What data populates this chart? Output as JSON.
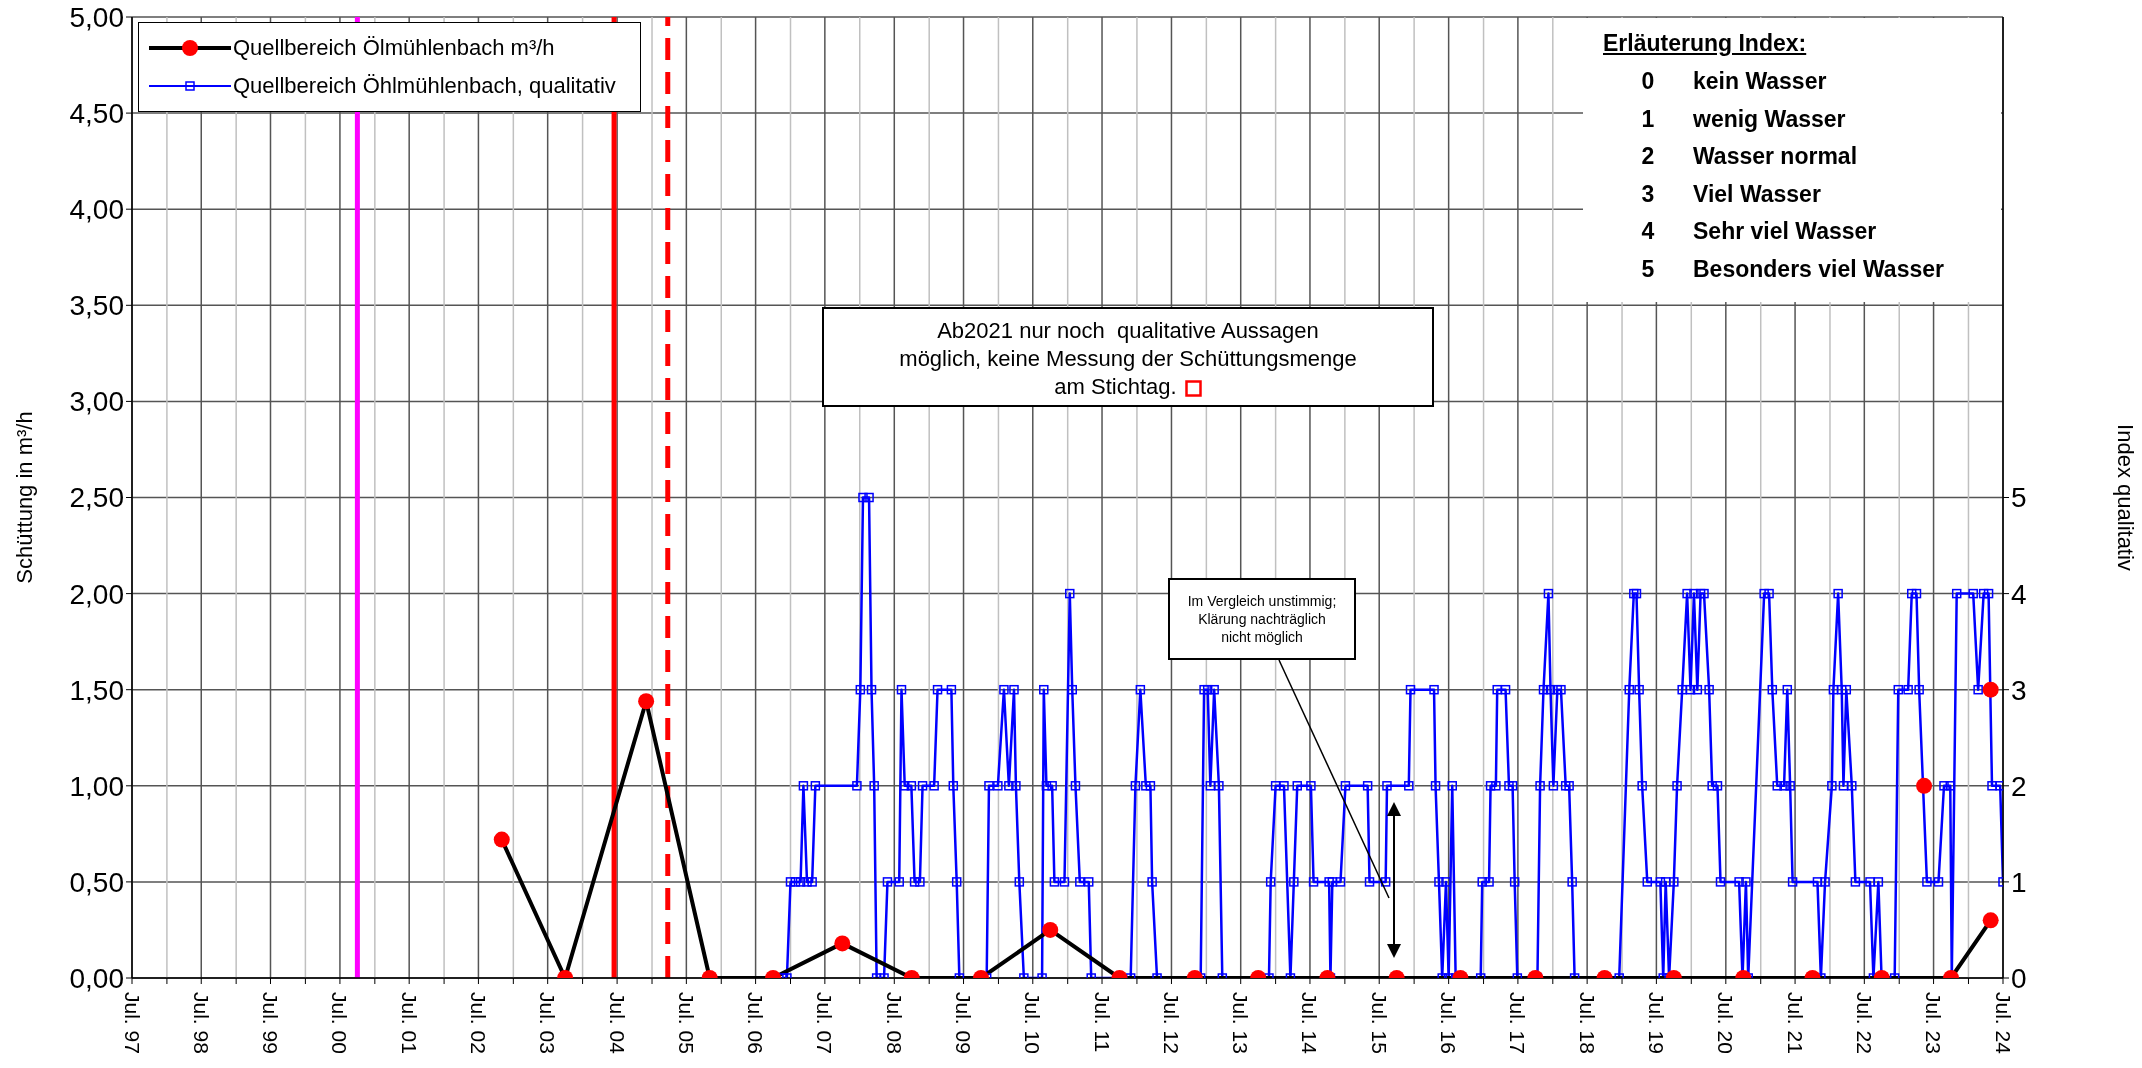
{
  "chart_data": {
    "type": "line",
    "ylabel": "Schüttung in m³/h",
    "y2label": "Index qualitativ",
    "xlim": [
      "1997-07",
      "2024-07"
    ],
    "xticks": [
      {
        "value": "1997-07",
        "label": "Jul. 97"
      },
      {
        "value": "1998-01",
        "label": null
      },
      {
        "value": "1998-07",
        "label": "Jul. 98"
      },
      {
        "value": "1999-01",
        "label": null
      },
      {
        "value": "1999-07",
        "label": "Jul. 99"
      },
      {
        "value": "2000-01",
        "label": null
      },
      {
        "value": "2000-07",
        "label": "Jul. 00"
      },
      {
        "value": "2001-01",
        "label": null
      },
      {
        "value": "2001-07",
        "label": "Jul. 01"
      },
      {
        "value": "2002-01",
        "label": null
      },
      {
        "value": "2002-07",
        "label": "Jul. 02"
      },
      {
        "value": "2003-01",
        "label": null
      },
      {
        "value": "2003-07",
        "label": "Jul. 03"
      },
      {
        "value": "2004-01",
        "label": null
      },
      {
        "value": "2004-07",
        "label": "Jul. 04"
      },
      {
        "value": "2005-01",
        "label": null
      },
      {
        "value": "2005-07",
        "label": "Jul. 05"
      },
      {
        "value": "2006-01",
        "label": null
      },
      {
        "value": "2006-07",
        "label": "Jul. 06"
      },
      {
        "value": "2007-01",
        "label": null
      },
      {
        "value": "2007-07",
        "label": "Jul. 07"
      },
      {
        "value": "2008-01",
        "label": null
      },
      {
        "value": "2008-07",
        "label": "Jul. 08"
      },
      {
        "value": "2009-01",
        "label": null
      },
      {
        "value": "2009-07",
        "label": "Jul. 09"
      },
      {
        "value": "2010-01",
        "label": null
      },
      {
        "value": "2010-07",
        "label": "Jul. 10"
      },
      {
        "value": "2011-01",
        "label": null
      },
      {
        "value": "2011-07",
        "label": "Jul. 11"
      },
      {
        "value": "2012-01",
        "label": null
      },
      {
        "value": "2012-07",
        "label": "Jul. 12"
      },
      {
        "value": "2013-01",
        "label": null
      },
      {
        "value": "2013-07",
        "label": "Jul. 13"
      },
      {
        "value": "2014-01",
        "label": null
      },
      {
        "value": "2014-07",
        "label": "Jul. 14"
      },
      {
        "value": "2015-01",
        "label": null
      },
      {
        "value": "2015-07",
        "label": "Jul. 15"
      },
      {
        "value": "2016-01",
        "label": null
      },
      {
        "value": "2016-07",
        "label": "Jul. 16"
      },
      {
        "value": "2017-01",
        "label": null
      },
      {
        "value": "2017-07",
        "label": "Jul. 17"
      },
      {
        "value": "2018-01",
        "label": null
      },
      {
        "value": "2018-07",
        "label": "Jul. 18"
      },
      {
        "value": "2019-01",
        "label": null
      },
      {
        "value": "2019-07",
        "label": "Jul. 19"
      },
      {
        "value": "2020-01",
        "label": null
      },
      {
        "value": "2020-07",
        "label": "Jul. 20"
      },
      {
        "value": "2021-01",
        "label": null
      },
      {
        "value": "2021-07",
        "label": "Jul. 21"
      },
      {
        "value": "2022-01",
        "label": null
      },
      {
        "value": "2022-07",
        "label": "Jul. 22"
      },
      {
        "value": "2023-01",
        "label": null
      },
      {
        "value": "2023-07",
        "label": "Jul. 23"
      },
      {
        "value": "2024-01",
        "label": null
      },
      {
        "value": "2024-07",
        "label": "Jul. 24"
      }
    ],
    "ylim": [
      0,
      5
    ],
    "yticks": [
      {
        "value": 0,
        "label": "0,00"
      },
      {
        "value": 0.5,
        "label": "0,50"
      },
      {
        "value": 1,
        "label": "1,00"
      },
      {
        "value": 1.5,
        "label": "1,50"
      },
      {
        "value": 2,
        "label": "2,00"
      },
      {
        "value": 2.5,
        "label": "2,50"
      },
      {
        "value": 3,
        "label": "3,00"
      },
      {
        "value": 3.5,
        "label": "3,50"
      },
      {
        "value": 4,
        "label": "4,00"
      },
      {
        "value": 4.5,
        "label": "4,50"
      },
      {
        "value": 5,
        "label": "5,00"
      }
    ],
    "y2lim": [
      0,
      10
    ],
    "y2ticks": [
      0,
      1,
      2,
      3,
      4,
      5
    ],
    "grid": true,
    "legend": "top left",
    "ref_lines": [
      {
        "axis": "x",
        "value": "2000-10",
        "color": "#ff00ff"
      },
      {
        "axis": "x",
        "value": "2004-06-15",
        "color": "#ff0000"
      },
      {
        "axis": "x",
        "value": "2005-03-25",
        "color": "#ff0000",
        "line_style": "dashed"
      }
    ],
    "annotations": [
      "Erläuterung Index:",
      "0 kein Wasser",
      "1 wenig Wasser",
      "2 Wasser normal",
      "3 Viel Wasser",
      "4 Sehr viel Wasser",
      "5 Besonders viel Wasser",
      "Ab2021 nur noch  qualitative Aussagen\nmöglich, keine Messung der Schüttungsmenge\nam Stichtag.",
      "Im Vergleich unstimmig;\nKlärung nachträglich\nnicht möglich"
    ],
    "series": [
      {
        "name": "Quellbereich Öhlmühlenbach, qualitativ",
        "axis": "y2",
        "color": "#0000ff",
        "marker": "square",
        "x": [
          "2006-11-17",
          "2006-12-13",
          "2007-01-01",
          "2007-01-27",
          "2007-02-23",
          "2007-03-10",
          "2007-03-29",
          "2007-04-25",
          "2007-05-12",
          "2007-12-17",
          "2008-01-04",
          "2008-01-18",
          "2008-02-19",
          "2008-03-03",
          "2008-03-17",
          "2008-03-30",
          "2008-05-08",
          "2008-05-26",
          "2008-07-27",
          "2008-08-08",
          "2008-08-25",
          "2008-09-29",
          "2008-10-16",
          "2008-11-13",
          "2008-11-27",
          "2009-01-27",
          "2009-02-14",
          "2009-04-28",
          "2009-05-08",
          "2009-05-26",
          "2009-06-09",
          "2009-10-31",
          "2009-11-12",
          "2009-12-29",
          "2010-01-30",
          "2010-02-25",
          "2010-03-24",
          "2010-04-03",
          "2010-04-21",
          "2010-05-15",
          "2010-08-19",
          "2010-08-28",
          "2010-09-11",
          "2010-10-11",
          "2010-10-23",
          "2010-12-15",
          "2011-01-12",
          "2011-01-25",
          "2011-02-11",
          "2011-03-06",
          "2011-04-22",
          "2011-05-05",
          "2011-11-29",
          "2011-12-24",
          "2012-01-19",
          "2012-02-17",
          "2012-03-12",
          "2012-03-21",
          "2012-04-16",
          "2012-12-02",
          "2012-12-20",
          "2013-01-08",
          "2013-01-22",
          "2013-02-11",
          "2013-03-08",
          "2013-03-26",
          "2013-11-27",
          "2013-12-06",
          "2014-01-01",
          "2014-02-14",
          "2014-03-20",
          "2014-04-07",
          "2014-04-25",
          "2014-07-06",
          "2014-07-20",
          "2014-10-10",
          "2014-10-17",
          "2014-10-27",
          "2014-12-09",
          "2015-01-04",
          "2015-05-01",
          "2015-05-11",
          "2015-08-04",
          "2015-08-11",
          "2015-12-04",
          "2015-12-13",
          "2016-04-15",
          "2016-04-23",
          "2016-05-11",
          "2016-05-28",
          "2016-06-17",
          "2016-07-01",
          "2016-07-20",
          "2016-08-07",
          "2016-12-17",
          "2016-12-25",
          "2017-01-30",
          "2017-02-07",
          "2017-03-07",
          "2017-03-14",
          "2017-04-27",
          "2017-05-15",
          "2017-06-03",
          "2017-06-14",
          "2017-06-28",
          "2017-10-12",
          "2017-10-26",
          "2017-11-13",
          "2017-12-09",
          "2017-12-20",
          "2018-01-04",
          "2018-01-25",
          "2018-02-13",
          "2018-03-10",
          "2018-03-28",
          "2018-04-13",
          "2018-04-26",
          "2018-12-17",
          "2019-02-08",
          "2019-03-04",
          "2019-03-18",
          "2019-04-01",
          "2019-04-17",
          "2019-05-14",
          "2019-07-22",
          "2019-08-06",
          "2019-08-19",
          "2019-09-06",
          "2019-10-01",
          "2019-10-18",
          "2019-11-14",
          "2019-12-10",
          "2019-12-28",
          "2020-01-15",
          "2020-02-02",
          "2020-02-19",
          "2020-03-08",
          "2020-04-04",
          "2020-04-20",
          "2020-05-18",
          "2020-06-03",
          "2020-09-09",
          "2020-09-27",
          "2020-10-15",
          "2020-10-27",
          "2021-01-19",
          "2021-02-14",
          "2021-03-03",
          "2021-03-29",
          "2021-05-04",
          "2021-05-21",
          "2021-06-05",
          "2021-06-18",
          "2021-10-27",
          "2021-11-14",
          "2021-12-06",
          "2022-01-11",
          "2022-01-19",
          "2022-02-13",
          "2022-03-04",
          "2022-03-13",
          "2022-03-28",
          "2022-04-26",
          "2022-05-15",
          "2022-07-31",
          "2022-08-18",
          "2022-09-13",
          "2022-09-30",
          "2022-12-08",
          "2022-12-27",
          "2023-02-17",
          "2023-03-08",
          "2023-04-02",
          "2023-04-16",
          "2023-05-27",
          "2023-07-27",
          "2023-08-25",
          "2023-09-27",
          "2023-10-05",
          "2023-10-31",
          "2024-01-26",
          "2024-02-21",
          "2024-03-21",
          "2024-04-16",
          "2024-05-04",
          "2024-06-16",
          "2024-07-01"
        ],
        "values": [
          0,
          0,
          1,
          1,
          1,
          2,
          1,
          1,
          2,
          2,
          3,
          5,
          5,
          3,
          2,
          0,
          0,
          1,
          1,
          3,
          2,
          2,
          1,
          1,
          2,
          2,
          3,
          3,
          2,
          1,
          0,
          0,
          2,
          2,
          3,
          2,
          3,
          2,
          1,
          0,
          0,
          3,
          2,
          2,
          1,
          1,
          4,
          3,
          2,
          1,
          1,
          0,
          0,
          2,
          3,
          2,
          2,
          1,
          0,
          0,
          3,
          3,
          2,
          3,
          2,
          0,
          0,
          1,
          2,
          2,
          0,
          1,
          2,
          2,
          1,
          1,
          0,
          1,
          1,
          2,
          2,
          1,
          1,
          2,
          2,
          3,
          3,
          2,
          1,
          0,
          1,
          0,
          2,
          0,
          0,
          1,
          1,
          2,
          2,
          3,
          3,
          2,
          2,
          1,
          0,
          0,
          2,
          3,
          4,
          3,
          2,
          3,
          3,
          2,
          2,
          1,
          0,
          0,
          3,
          4,
          4,
          3,
          2,
          1,
          1,
          0,
          1,
          0,
          1,
          2,
          3,
          4,
          3,
          4,
          3,
          4,
          4,
          3,
          2,
          2,
          1,
          1,
          0,
          1,
          0,
          4,
          4,
          3,
          2,
          2,
          3,
          2,
          1,
          1,
          0,
          1,
          2,
          3,
          4,
          3,
          2,
          3,
          2,
          1,
          1,
          0,
          1,
          0,
          0,
          3,
          3,
          4,
          4,
          3,
          1,
          1,
          2,
          2,
          0,
          4,
          4,
          3,
          4,
          4,
          2,
          2,
          1
        ]
      },
      {
        "name": "Quellbereich Ölmühlenbach m³/h",
        "color": "#000000",
        "marker": "circle",
        "x": [
          "2002-11",
          "2003-10",
          "2004-12",
          "2005-11",
          "2006-10",
          "2007-10",
          "2008-10",
          "2009-10",
          "2010-10",
          "2011-10",
          "2012-11",
          "2013-10",
          "2014-10",
          "2015-10",
          "2016-09",
          "2017-10",
          "2018-10",
          "2019-10",
          "2020-10",
          "2021-10",
          "2022-10",
          "2023-10",
          "2024-04-27"
        ],
        "values": [
          0.72,
          0,
          1.44,
          0,
          0,
          0.18,
          0,
          0,
          0.25,
          0,
          0,
          0,
          0,
          0,
          0,
          0,
          0,
          0,
          0,
          0,
          0,
          0,
          0.3
        ],
        "colors": [
          "#ff0000",
          "#ff0000",
          "#ff0000",
          "#ff0000",
          "#ff0000",
          "#ff0000",
          "#ff0000",
          "#ff0000",
          "#ff0000",
          "#ff0000",
          "#ff0000",
          "#ff0000",
          "#ff0000",
          "#ff0000",
          "#ff0000",
          "#ff0000",
          "#ff0000",
          "#ff0000",
          "#ff0000",
          "#ff0000",
          "#ff0000",
          "#ff0000",
          "#ff0000"
        ]
      },
      {
        "type": "scatter",
        "axis": "y2",
        "color": "#ff0000",
        "marker": "circle",
        "x": [
          "2023-05-12",
          "2024-04-27"
        ],
        "values": [
          2,
          3
        ]
      }
    ]
  }
}
